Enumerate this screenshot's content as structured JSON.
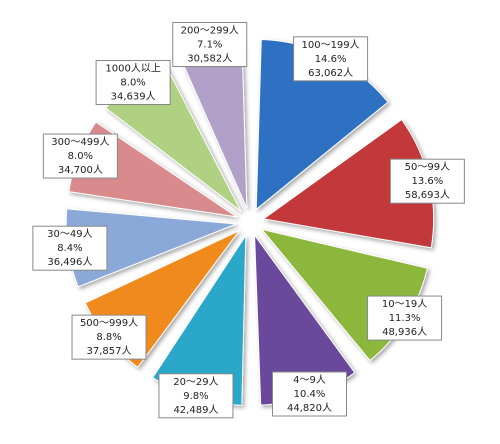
{
  "chart_data": {
    "type": "pie",
    "categories": [
      "100～199人",
      "50～99人",
      "10～19人",
      "4～9人",
      "20～29人",
      "500～999人",
      "30～49人",
      "300～499人",
      "1000人以上",
      "200～299人"
    ],
    "values": [
      14.6,
      13.6,
      11.3,
      10.4,
      9.8,
      8.8,
      8.4,
      8.0,
      8.0,
      7.1
    ],
    "value_labels": [
      "14.6%",
      "13.6%",
      "11.3%",
      "10.4%",
      "9.8%",
      "8.8%",
      "8.4%",
      "8.0%",
      "8.0%",
      "7.1%"
    ],
    "counts": [
      63062,
      58693,
      48936,
      44820,
      42489,
      37857,
      36496,
      34700,
      34639,
      30582
    ],
    "count_labels": [
      "63,062人",
      "58,693人",
      "48,936人",
      "44,820人",
      "42,489人",
      "37,857人",
      "36,496人",
      "34,700人",
      "34,639人",
      "30,582人"
    ],
    "colors": [
      "#2f6fc2",
      "#c2383a",
      "#8db63e",
      "#6b489c",
      "#2aa7c9",
      "#f08a1f",
      "#8aa9d9",
      "#d98a8c",
      "#b1d182",
      "#b1a1c9"
    ]
  }
}
